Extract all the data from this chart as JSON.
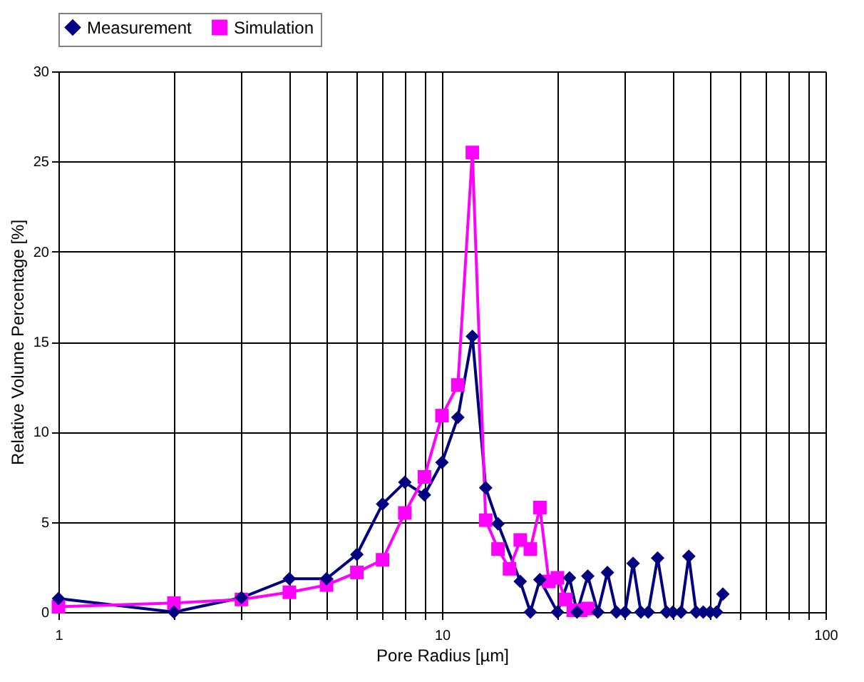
{
  "chart_data": {
    "type": "line",
    "xlabel": "Pore Radius [µm]",
    "ylabel": "Relative Volume Percentage [%]",
    "log": "x",
    "xlim": [
      1,
      100
    ],
    "xticks": [
      1,
      {
        "value": 2,
        "label": null
      },
      {
        "value": 3,
        "label": null
      },
      {
        "value": 4,
        "label": null
      },
      {
        "value": 5,
        "label": null
      },
      {
        "value": 6,
        "label": null
      },
      {
        "value": 7,
        "label": null
      },
      {
        "value": 8,
        "label": null
      },
      {
        "value": 9,
        "label": null
      },
      10,
      {
        "value": 20,
        "label": null
      },
      {
        "value": 30,
        "label": null
      },
      {
        "value": 40,
        "label": null
      },
      {
        "value": 50,
        "label": null
      },
      {
        "value": 60,
        "label": null
      },
      {
        "value": 70,
        "label": null
      },
      {
        "value": 80,
        "label": null
      },
      {
        "value": 90,
        "label": null
      },
      100
    ],
    "ylim": [
      0,
      30
    ],
    "yticks": [
      0,
      5,
      10,
      15,
      20,
      25,
      30
    ],
    "grid": true,
    "legend": "top",
    "series": [
      {
        "name": "Measurement",
        "color": "#000080",
        "marker": "diamond",
        "x": [
          1,
          2,
          3,
          4,
          5,
          6,
          7,
          8,
          9,
          10,
          11,
          12,
          13,
          14,
          16,
          17,
          18,
          20,
          21.5,
          22.5,
          24,
          25.5,
          27,
          28.5,
          30,
          31.5,
          33,
          34.5,
          36.5,
          38.5,
          40,
          42,
          44,
          46,
          48,
          50,
          52,
          54
        ],
        "values": [
          0.75,
          0,
          0.8,
          1.85,
          1.85,
          3.2,
          6.0,
          7.2,
          6.5,
          8.3,
          10.8,
          15.3,
          6.9,
          4.9,
          1.7,
          0,
          1.8,
          0,
          1.9,
          0,
          2.0,
          0,
          2.2,
          0,
          0,
          2.7,
          0,
          0,
          3.0,
          0,
          0,
          0,
          3.1,
          0,
          0,
          0,
          0,
          1.0
        ]
      },
      {
        "name": "Simulation",
        "color": "#ff00ff",
        "marker": "square",
        "x": [
          1,
          2,
          3,
          4,
          5,
          6,
          7,
          8,
          9,
          10,
          11,
          12,
          13,
          14,
          15,
          16,
          17,
          18,
          19,
          20,
          21,
          22,
          23,
          24
        ],
        "values": [
          0.3,
          0.5,
          0.7,
          1.1,
          1.5,
          2.2,
          2.9,
          5.5,
          7.5,
          10.9,
          12.6,
          25.5,
          5.1,
          3.5,
          2.4,
          4.0,
          3.5,
          5.8,
          1.7,
          1.9,
          0.7,
          0.1,
          0.1,
          0.2
        ]
      }
    ]
  }
}
